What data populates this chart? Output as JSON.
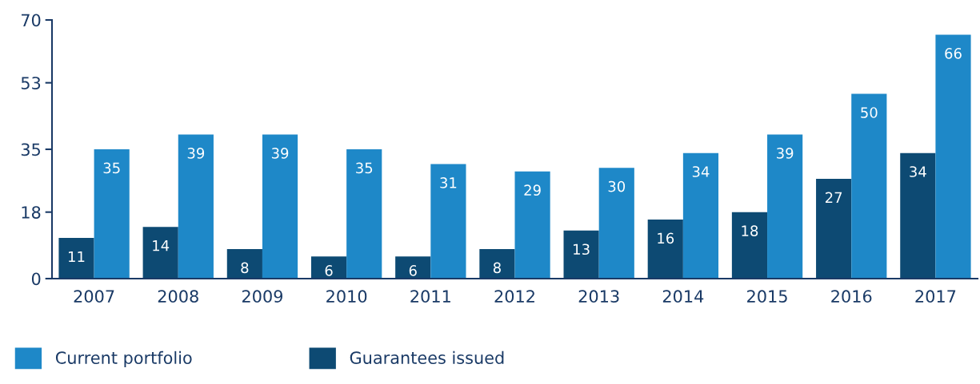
{
  "chart_data": {
    "type": "bar",
    "categories": [
      "2007",
      "2008",
      "2009",
      "2010",
      "2011",
      "2012",
      "2013",
      "2014",
      "2015",
      "2016",
      "2017"
    ],
    "series": [
      {
        "name": "Guarantees issued",
        "color": "#0d4a73",
        "values": [
          11,
          14,
          8,
          6,
          6,
          8,
          13,
          16,
          18,
          27,
          34
        ]
      },
      {
        "name": "Current portfolio",
        "color": "#1e88c8",
        "values": [
          35,
          39,
          39,
          35,
          31,
          29,
          30,
          34,
          39,
          50,
          66
        ]
      }
    ],
    "ylim": [
      0,
      70
    ],
    "yticks": [
      0,
      18,
      35,
      53,
      70
    ],
    "grid": false,
    "legend": "bottom left",
    "data_labels": true
  }
}
